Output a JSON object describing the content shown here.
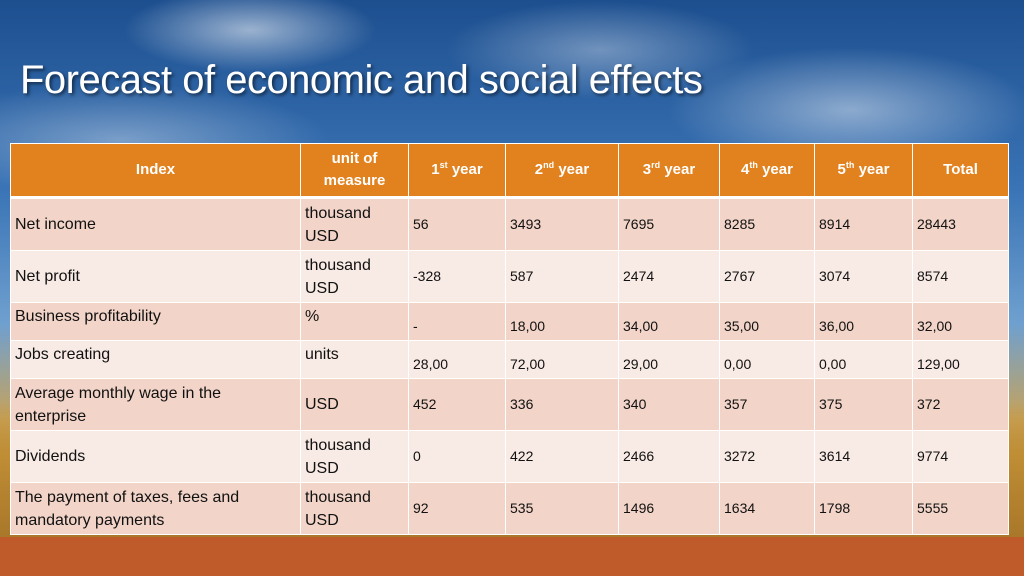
{
  "slide": {
    "title": "Forecast of economic and social effects"
  },
  "table": {
    "headers": {
      "index": "Index",
      "unit": "unit of measure",
      "y1_num": "1",
      "y1_sup": "st",
      "y1_word": "year",
      "y2_num": "2",
      "y2_sup": "nd",
      "y2_word": "year",
      "y3_num": "3",
      "y3_sup": "rd",
      "y3_word": "year",
      "y4_num": "4",
      "y4_sup": "th",
      "y4_word": "year",
      "y5_num": "5",
      "y5_sup": "th",
      "y5_word": "year",
      "total": "Total"
    },
    "rows": [
      {
        "index": "Net income",
        "unit": "thousand USD",
        "y1": "56",
        "y2": "3493",
        "y3": "7695",
        "y4": "8285",
        "y5": "8914",
        "total": "28443"
      },
      {
        "index": "Net profit",
        "unit": "thousand USD",
        "y1": "-328",
        "y2": "587",
        "y3": "2474",
        "y4": "2767",
        "y5": "3074",
        "total": "8574"
      },
      {
        "index": "Business profitability",
        "unit": "%",
        "y1": "-",
        "y2": "18,00",
        "y3": "34,00",
        "y4": "35,00",
        "y5": "36,00",
        "total": "32,00"
      },
      {
        "index": "Jobs creating",
        "unit": "units",
        "y1": "28,00",
        "y2": "72,00",
        "y3": "29,00",
        "y4": "0,00",
        "y5": "0,00",
        "total": "129,00"
      },
      {
        "index": "Average monthly wage in the enterprise",
        "unit": "USD",
        "y1": "452",
        "y2": "336",
        "y3": "340",
        "y4": "357",
        "y5": "375",
        "total": "372"
      },
      {
        "index": "Dividends",
        "unit": "thousand USD",
        "y1": "0",
        "y2": "422",
        "y3": "2466",
        "y4": "3272",
        "y5": "3614",
        "total": "9774"
      },
      {
        "index": "The payment of taxes, fees and mandatory payments",
        "unit": "thousand USD",
        "y1": "92",
        "y2": "535",
        "y3": "1496",
        "y4": "1634",
        "y5": "1798",
        "total": "5555"
      }
    ]
  },
  "colors": {
    "header_bg": "#e2821e",
    "row_odd_bg": "#f2d4c8",
    "row_even_bg": "#f8eae4",
    "bottom_band": "#bf5a2b"
  }
}
